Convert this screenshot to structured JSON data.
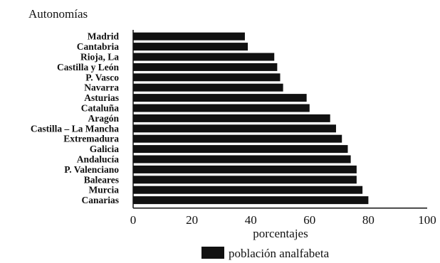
{
  "chart_data": {
    "type": "bar",
    "orientation": "horizontal",
    "title": "Autonomías",
    "xlabel": "porcentajes",
    "xlim": [
      0,
      100
    ],
    "xticks": [
      0,
      20,
      40,
      60,
      80,
      100
    ],
    "categories": [
      "Madrid",
      "Cantabria",
      "Rioja, La",
      "Castilla y León",
      "P. Vasco",
      "Navarra",
      "Asturias",
      "Cataluña",
      "Aragón",
      "Castilla – La Mancha",
      "Extremadura",
      "Galicia",
      "Andalucía",
      "P. Valenciano",
      "Baleares",
      "Murcia",
      "Canarias"
    ],
    "series": [
      {
        "name": "población analfabeta",
        "color": "#111111",
        "values": [
          38,
          39,
          48,
          49,
          50,
          51,
          59,
          60,
          67,
          69,
          71,
          73,
          74,
          76,
          76,
          78,
          80
        ]
      }
    ],
    "legend_position": "bottom",
    "grid": false
  }
}
